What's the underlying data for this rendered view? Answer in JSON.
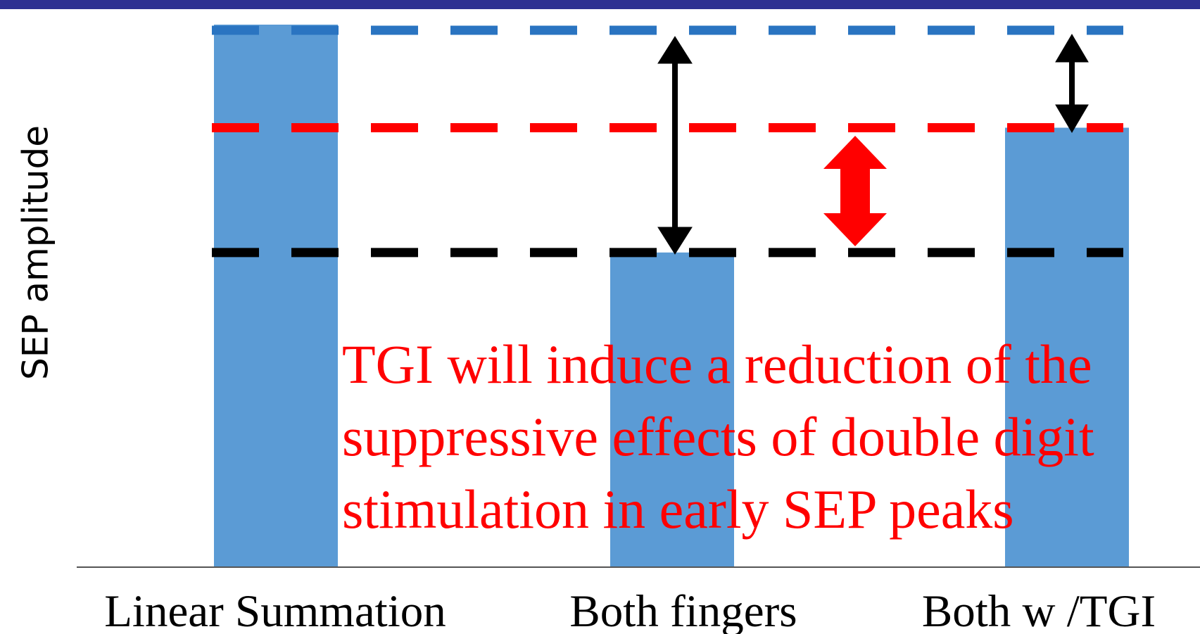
{
  "chart_data": {
    "type": "bar",
    "ylabel": "SEP amplitude",
    "categories": [
      "Linear Summation",
      "Both fingers",
      "Both w /TGI"
    ],
    "values": [
      100,
      58,
      81
    ],
    "ylim": [
      0,
      100
    ],
    "color": "#5b9bd5",
    "reference_line_colors": [
      "#2a74c1",
      "#000000",
      "#ff0000"
    ],
    "annotation": [
      "TGI will induce a reduction of the",
      "suppressive effects of double digit",
      "stimulation in early SEP peaks"
    ],
    "annotation_color": "#ff0000"
  }
}
